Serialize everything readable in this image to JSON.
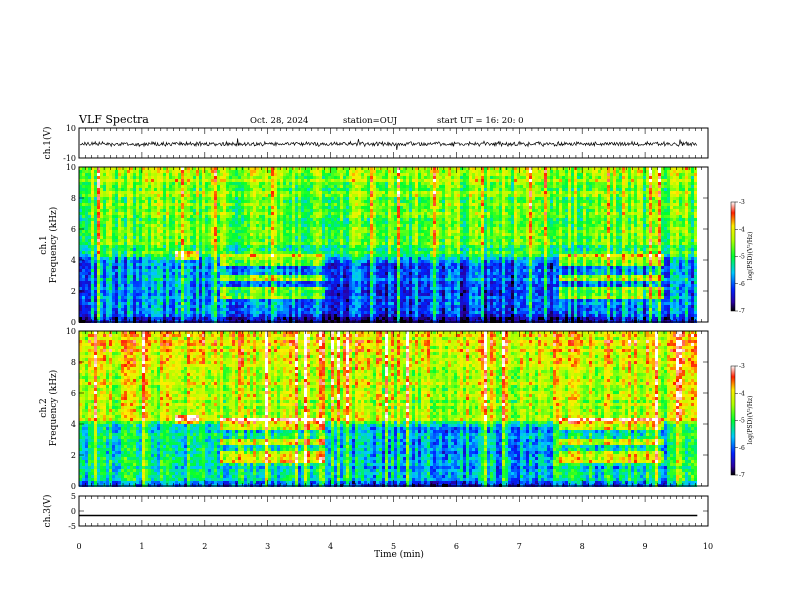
{
  "header": {
    "title": "VLF Spectra",
    "date": "Oct. 28, 2024",
    "station": "station=OUJ",
    "start": "start  UT =  16: 20: 0"
  },
  "chart_data": [
    {
      "type": "line",
      "panel": "ch1-waveform",
      "ylabel": "ch.1(V)",
      "ylim": [
        -10,
        10
      ],
      "yticks": [
        "10",
        "-10"
      ],
      "xlim": [
        0,
        10
      ],
      "color": "#000000"
    },
    {
      "type": "heatmap",
      "panel": "ch1-spectrogram",
      "ylabel": "ch.1\nFrequency (kHz)",
      "ylim": [
        0,
        10
      ],
      "yticks": [
        "10",
        "8",
        "6",
        "4",
        "2",
        "0"
      ],
      "xlim": [
        0,
        10
      ],
      "colorbar": {
        "label": "log(PSD)(V²/Hz)",
        "ticks": [
          "-3",
          "-4",
          "-5",
          "-6",
          "-7"
        ],
        "range": [
          -7,
          -3
        ]
      }
    },
    {
      "type": "heatmap",
      "panel": "ch2-spectrogram",
      "ylabel": "ch.2\nFrequency (kHz)",
      "ylim": [
        0,
        10
      ],
      "yticks": [
        "10",
        "8",
        "6",
        "4",
        "2",
        "0"
      ],
      "xlim": [
        0,
        10
      ],
      "colorbar": {
        "label": "log(PSD)(V²/Hz)",
        "ticks": [
          "-3",
          "-4",
          "-5",
          "-6",
          "-7"
        ],
        "range": [
          -7,
          -3
        ]
      }
    },
    {
      "type": "line",
      "panel": "ch3-waveform",
      "ylabel": "ch.3(V)",
      "ylim": [
        -5,
        5
      ],
      "yticks": [
        "5",
        "0",
        "-5"
      ],
      "xlim": [
        0,
        10
      ],
      "values_constant": -1.5,
      "color": "#000000"
    }
  ],
  "xaxis": {
    "label": "Time (min)",
    "ticks": [
      "0",
      "1",
      "2",
      "3",
      "4",
      "5",
      "6",
      "7",
      "8",
      "9",
      "10"
    ],
    "data_end": 9.83
  },
  "ylabels": {
    "ch1": "ch.1(V)",
    "ch1spec_a": "ch.1",
    "ch1spec_b": "Frequency (kHz)",
    "ch2spec_a": "ch.2",
    "ch2spec_b": "Frequency (kHz)",
    "ch3": "ch.3(V)"
  },
  "colorbar_label": "log(PSD)(V²/Hz)"
}
